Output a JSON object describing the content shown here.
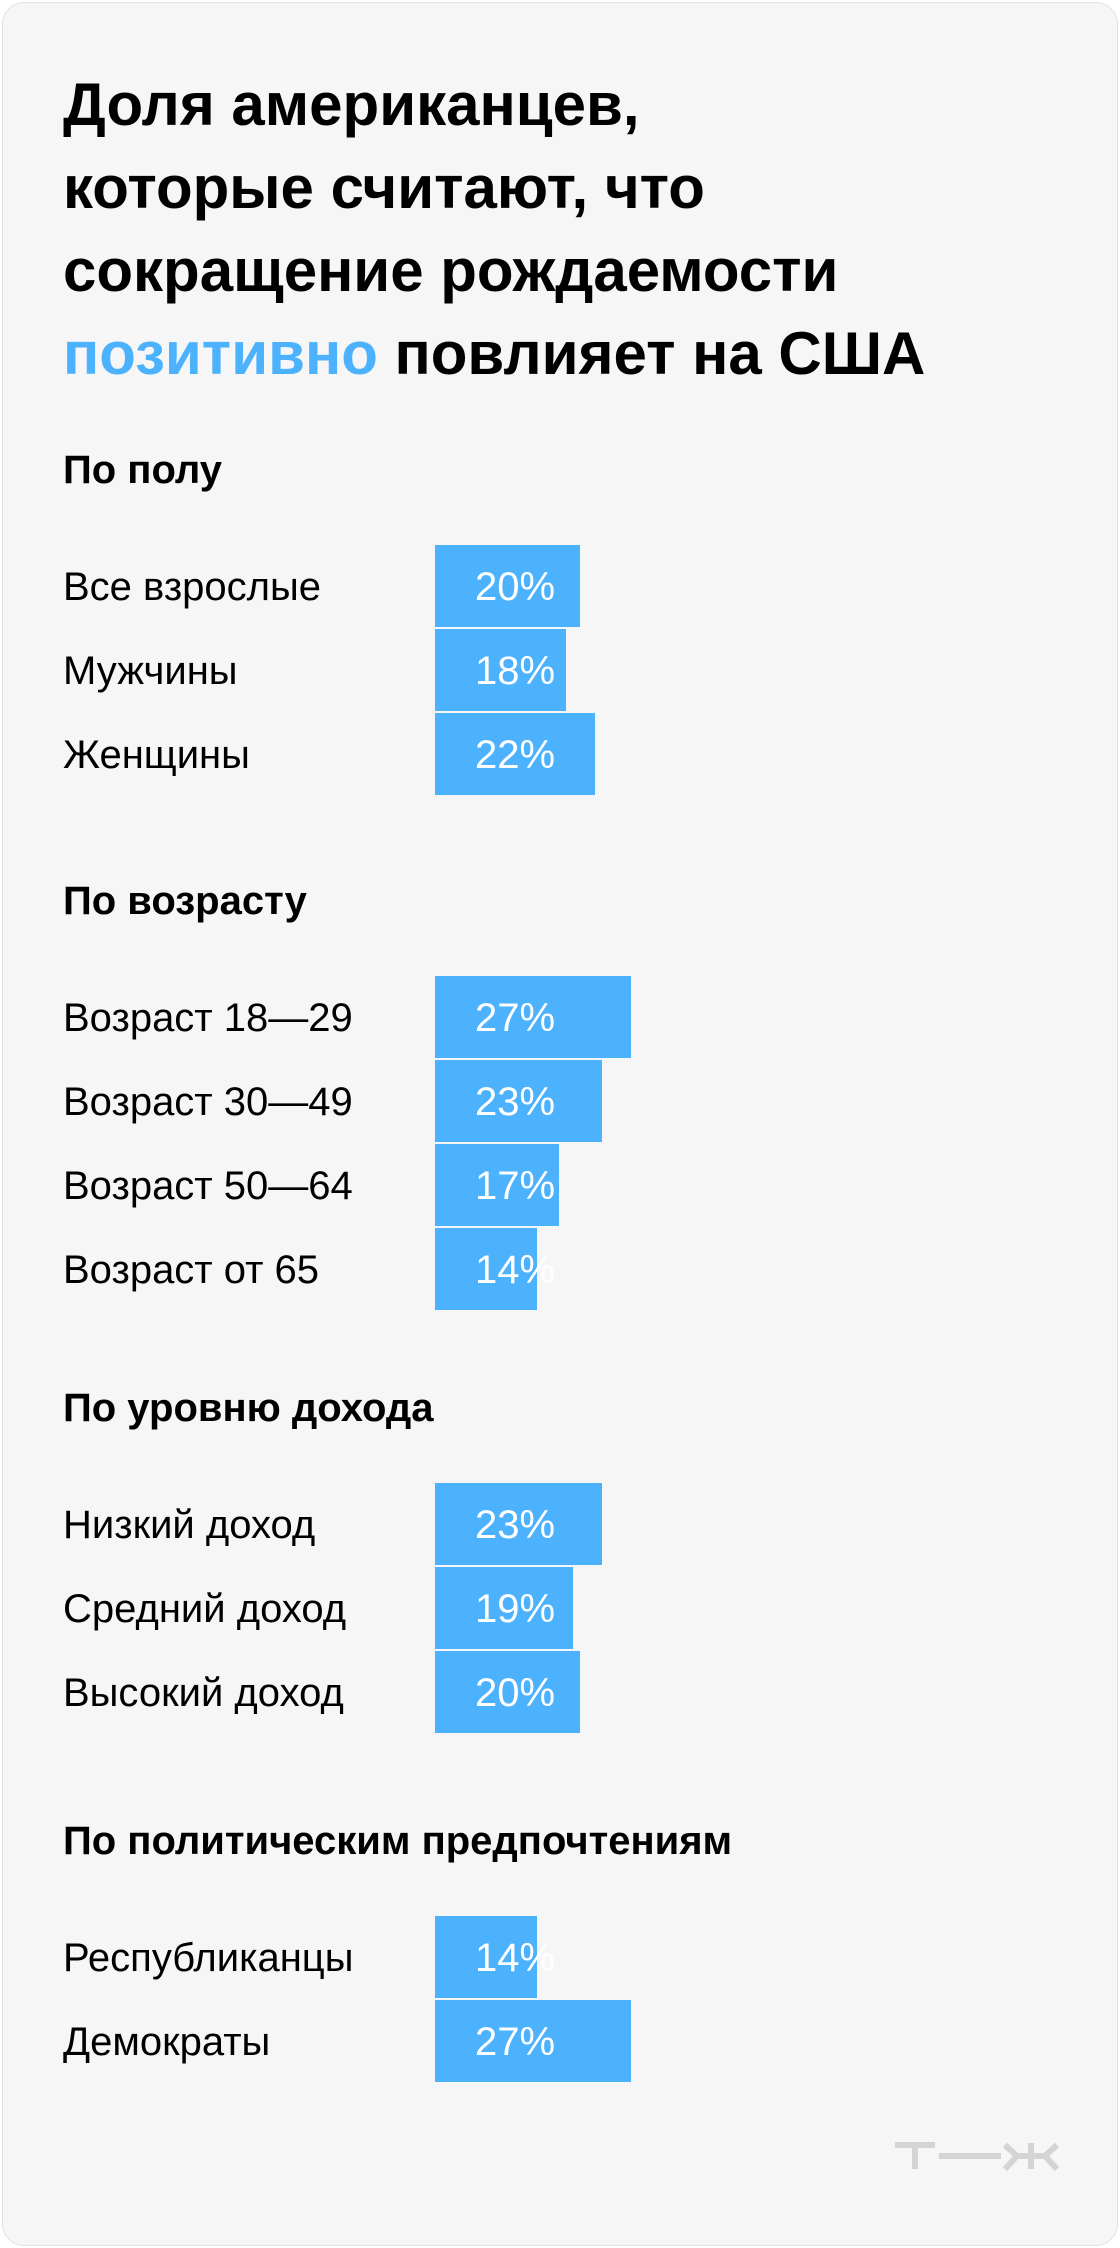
{
  "title": {
    "line1": "Доля американцев,",
    "line2": "которые считают, что",
    "line3": "сокращение рождаемости",
    "highlight": "позитивно",
    "line4_rest": " повлияет на США"
  },
  "colors": {
    "bar": "#4db2fd",
    "highlight": "#4db2fd",
    "background": "#f6f6f6"
  },
  "chart_data": {
    "type": "bar",
    "orientation": "horizontal",
    "unit": "%",
    "groups": [
      {
        "title": "По полу",
        "rows": [
          {
            "label": "Все взрослые",
            "value": 20,
            "text": "20%"
          },
          {
            "label": "Мужчины",
            "value": 18,
            "text": "18%"
          },
          {
            "label": "Женщины",
            "value": 22,
            "text": "22%"
          }
        ]
      },
      {
        "title": "По возрасту",
        "rows": [
          {
            "label": "Возраст 18—29",
            "value": 27,
            "text": "27%"
          },
          {
            "label": "Возраст 30—49",
            "value": 23,
            "text": "23%"
          },
          {
            "label": "Возраст 50—64",
            "value": 17,
            "text": "17%"
          },
          {
            "label": "Возраст от 65",
            "value": 14,
            "text": "14%"
          }
        ]
      },
      {
        "title": "По уровню дохода",
        "rows": [
          {
            "label": "Низкий доход",
            "value": 23,
            "text": "23%"
          },
          {
            "label": "Средний доход",
            "value": 19,
            "text": "19%"
          },
          {
            "label": "Высокий доход",
            "value": 20,
            "text": "20%"
          }
        ]
      },
      {
        "title": "По политическим предпочтениям",
        "rows": [
          {
            "label": "Республиканцы",
            "value": 14,
            "text": "14%"
          },
          {
            "label": "Демократы",
            "value": 27,
            "text": "27%"
          }
        ]
      }
    ]
  },
  "logo": {
    "icon": "tzh-logo-icon",
    "text": "т—ж"
  }
}
